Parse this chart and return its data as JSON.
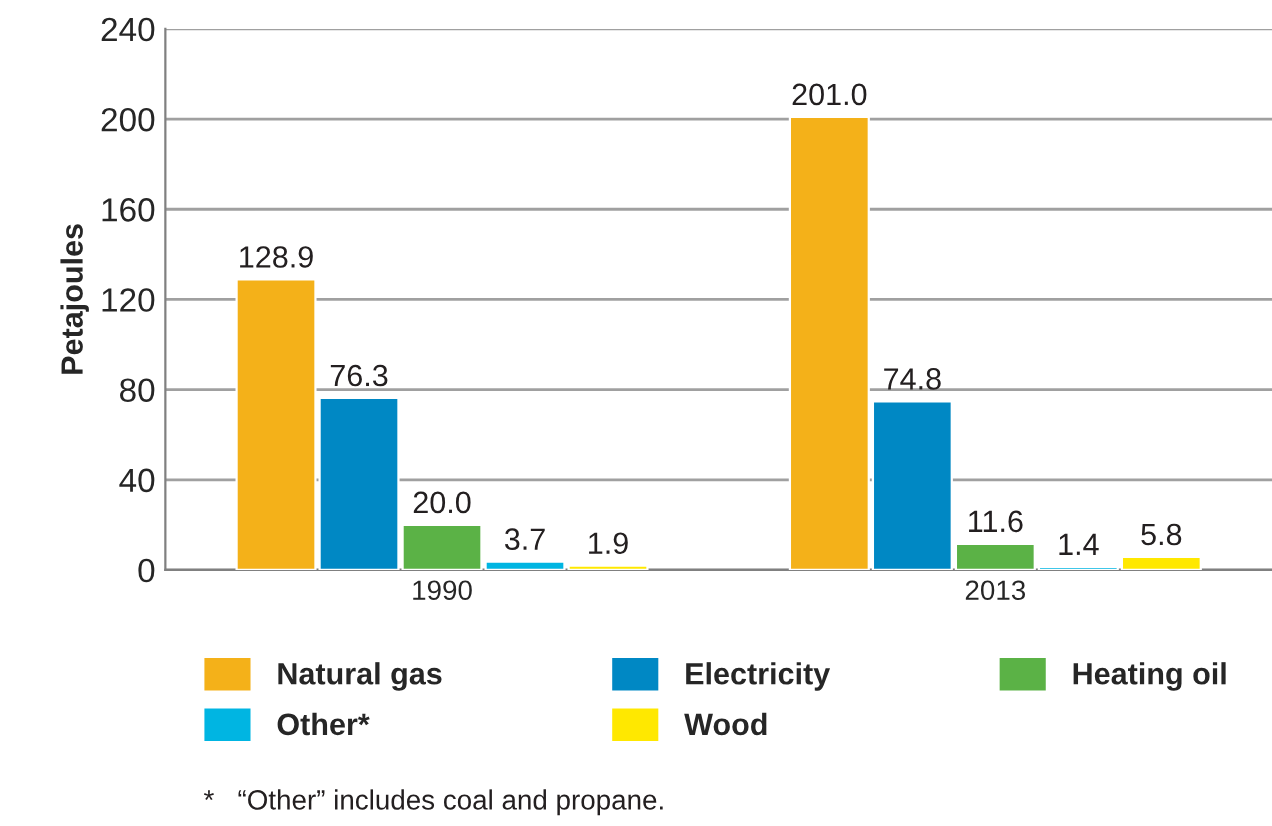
{
  "chart_data": {
    "type": "bar",
    "ylabel": "Petajoules",
    "categories": [
      "1990",
      "2013"
    ],
    "series": [
      {
        "name": "Natural gas",
        "color": "#f4b119",
        "values": [
          128.9,
          201.0
        ],
        "value_labels": [
          "128.9",
          "201.0"
        ]
      },
      {
        "name": "Electricity",
        "color": "#0088c4",
        "values": [
          76.3,
          74.8
        ],
        "value_labels": [
          "76.3",
          "74.8"
        ]
      },
      {
        "name": "Heating oil",
        "color": "#5bb246",
        "values": [
          20.0,
          11.6
        ],
        "value_labels": [
          "20.0",
          "11.6"
        ]
      },
      {
        "name": "Other*",
        "color": "#00b5e2",
        "values": [
          3.7,
          1.4
        ],
        "value_labels": [
          "3.7",
          "1.4"
        ]
      },
      {
        "name": "Wood",
        "color": "#ffe800",
        "values": [
          1.9,
          5.8
        ],
        "value_labels": [
          "1.9",
          "5.8"
        ]
      }
    ],
    "ylim": [
      0,
      240
    ],
    "yticks": [
      0,
      40,
      80,
      120,
      160,
      200,
      240
    ],
    "grid": "y",
    "legend": "bottom",
    "annotations": [
      "*   “Other” includes coal and propane."
    ]
  }
}
